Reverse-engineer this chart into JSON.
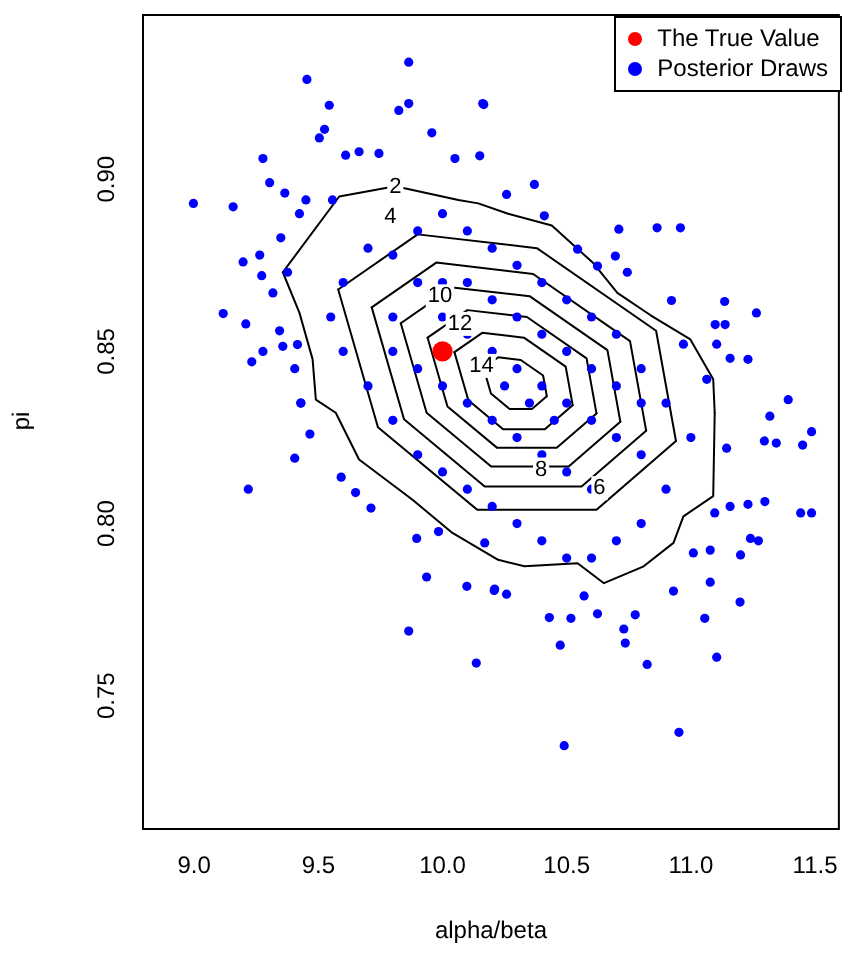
{
  "chart_data": {
    "type": "scatter",
    "xlabel": "alpha/beta",
    "ylabel": "pi",
    "xlim": [
      8.79,
      11.6
    ],
    "ylim": [
      0.7116,
      0.948
    ],
    "xticks": [
      {
        "value": 9,
        "label": "9.0"
      },
      {
        "value": 9.5,
        "label": "9.5"
      },
      {
        "value": 10,
        "label": "10.0"
      },
      {
        "value": 10.5,
        "label": "10.5"
      },
      {
        "value": 11,
        "label": "11.0"
      },
      {
        "value": 11.5,
        "label": "11.5"
      }
    ],
    "yticks": [
      {
        "value": 0.75,
        "label": "0.75"
      },
      {
        "value": 0.8,
        "label": "0.80"
      },
      {
        "value": 0.85,
        "label": "0.85"
      },
      {
        "value": 0.9,
        "label": "0.90"
      }
    ],
    "grid": false,
    "legend": "top right",
    "marker": "circle",
    "series": [
      {
        "name": "The True Value",
        "color": "#ff0000",
        "x": [
          10.0
        ],
        "values": [
          0.85
        ]
      },
      {
        "name": "Posterior Draws",
        "color": "#0000ff",
        "x": [
          9.864,
          9.454,
          9.544,
          9.864,
          9.824,
          9.525,
          9.504,
          9.277,
          9.304,
          8.997,
          9.157,
          9.365,
          9.197,
          9.117,
          9.208,
          9.277,
          9.232,
          9.405,
          9.429,
          9.349,
          9.264,
          9.272,
          9.344,
          9.416,
          9.664,
          9.957,
          10.162,
          10.05,
          9.744,
          9.61,
          9.45,
          9.557,
          9.424,
          9.376,
          9.317,
          9.357,
          9.218,
          9.405,
          9.466,
          9.43,
          9.592,
          9.65,
          9.712,
          9.896,
          9.936,
          9.864,
          10.098,
          10.136,
          10.208,
          9.984,
          10.17,
          10.49,
          10.952,
          10.474,
          10.736,
          10.824,
          11.104,
          11.056,
          11.198,
          10.73,
          10.776,
          10.517,
          10.43,
          10.624,
          10.57,
          10.258,
          10.21,
          10.93,
          11.078,
          11.296,
          11.344,
          11.486,
          11.45,
          11.442,
          11.486,
          11.298,
          11.23,
          11.272,
          11.24,
          11.2,
          11.078,
          11.01,
          11.158,
          11.318,
          11.392,
          11.144,
          11.096,
          10.166,
          10.15,
          10.37,
          10.258,
          10.71,
          10.864,
          10.958,
          10.696,
          10.744,
          10.922,
          11.136,
          11.264,
          11.098,
          11.138,
          11.104,
          11.158,
          11.23,
          11.064,
          10.97,
          10.544,
          10.41,
          10.624,
          9.6,
          9.7,
          9.8,
          9.9,
          10.0,
          10.1,
          10.2,
          10.3,
          10.4,
          10.5,
          10.6,
          10.7,
          10.8,
          10.9,
          11.0,
          10.9,
          10.8,
          10.7,
          10.6,
          10.5,
          10.4,
          10.3,
          10.2,
          10.1,
          10.0,
          9.9,
          9.8,
          9.7,
          9.6,
          9.55,
          9.8,
          9.9,
          10.0,
          10.1,
          10.2,
          10.3,
          10.4,
          10.5,
          10.6,
          10.7,
          10.8,
          10.6,
          10.5,
          10.4,
          10.3,
          10.2,
          10.1,
          10.0,
          9.9,
          9.8,
          10.0,
          10.2,
          10.4,
          10.6,
          10.8,
          10.3,
          10.5,
          10.7,
          10.1,
          10.35,
          10.45,
          10.25
        ],
        "values": [
          0.934,
          0.929,
          0.9215,
          0.922,
          0.92,
          0.9145,
          0.912,
          0.906,
          0.899,
          0.893,
          0.892,
          0.896,
          0.876,
          0.861,
          0.858,
          0.85,
          0.847,
          0.845,
          0.835,
          0.883,
          0.878,
          0.872,
          0.856,
          0.852,
          0.908,
          0.9135,
          0.922,
          0.906,
          0.9075,
          0.907,
          0.894,
          0.894,
          0.89,
          0.873,
          0.867,
          0.8515,
          0.81,
          0.819,
          0.826,
          0.835,
          0.8135,
          0.809,
          0.8045,
          0.7957,
          0.7845,
          0.7688,
          0.7818,
          0.7595,
          0.7806,
          0.7977,
          0.7944,
          0.7355,
          0.7394,
          0.7647,
          0.7653,
          0.7591,
          0.7612,
          0.7725,
          0.7772,
          0.7694,
          0.7735,
          0.7725,
          0.7727,
          0.7738,
          0.779,
          0.7795,
          0.781,
          0.7804,
          0.783,
          0.824,
          0.8234,
          0.8267,
          0.8228,
          0.8031,
          0.8031,
          0.8064,
          0.8056,
          0.795,
          0.7957,
          0.7909,
          0.7923,
          0.7915,
          0.805,
          0.8312,
          0.836,
          0.8219,
          0.8031,
          0.9217,
          0.9068,
          0.8985,
          0.8956,
          0.8855,
          0.8859,
          0.8859,
          0.8777,
          0.873,
          0.8648,
          0.8645,
          0.8612,
          0.8578,
          0.8578,
          0.8521,
          0.848,
          0.8477,
          0.8419,
          0.8521,
          0.8797,
          0.8894,
          0.8748,
          0.87,
          0.88,
          0.878,
          0.885,
          0.89,
          0.885,
          0.88,
          0.875,
          0.87,
          0.865,
          0.86,
          0.855,
          0.845,
          0.835,
          0.825,
          0.81,
          0.8,
          0.795,
          0.79,
          0.79,
          0.795,
          0.8,
          0.805,
          0.81,
          0.815,
          0.82,
          0.83,
          0.84,
          0.85,
          0.86,
          0.86,
          0.87,
          0.86,
          0.855,
          0.85,
          0.845,
          0.84,
          0.835,
          0.83,
          0.825,
          0.82,
          0.81,
          0.815,
          0.82,
          0.825,
          0.83,
          0.835,
          0.84,
          0.845,
          0.85,
          0.87,
          0.865,
          0.855,
          0.845,
          0.835,
          0.86,
          0.85,
          0.84,
          0.87,
          0.835,
          0.83,
          0.84
        ]
      },
      {
        "type": "line",
        "marker": "none",
        "color": "#000000",
        "x": [
          9.357,
          9.584,
          9.81,
          10.064,
          10.144,
          10.264,
          10.44,
          10.608,
          10.704,
          10.838,
          10.998,
          11.09,
          11.096
        ],
        "values": [
          0.873,
          0.895,
          0.898,
          0.894,
          0.893,
          0.89,
          0.8866,
          0.8756,
          0.867,
          0.8605,
          0.8535,
          0.8419,
          0.8322
        ]
      },
      {
        "type": "line",
        "marker": "none",
        "color": "#000000",
        "x": [
          9.357,
          9.424,
          9.477,
          9.49,
          9.57,
          9.664,
          9.878,
          10.04,
          10.224,
          10.33,
          10.544,
          10.65,
          10.81,
          10.93,
          10.97,
          11.09,
          11.096
        ],
        "values": [
          0.873,
          0.8612,
          0.8477,
          0.836,
          0.8322,
          0.8186,
          0.807,
          0.7973,
          0.7895,
          0.7876,
          0.7885,
          0.7827,
          0.7876,
          0.7944,
          0.8021,
          0.808,
          0.8322
        ]
      },
      {
        "type": "line",
        "marker": "none",
        "color": "#000000",
        "x": [
          9.58,
          9.9,
          10.38,
          10.86,
          10.94
        ],
        "values": [
          0.868,
          0.884,
          0.88,
          0.856,
          0.824
        ]
      },
      {
        "type": "line",
        "marker": "none",
        "color": "#000000",
        "x": [
          9.58,
          9.74,
          10.14,
          10.62,
          10.94
        ],
        "values": [
          0.868,
          0.828,
          0.804,
          0.804,
          0.824
        ]
      },
      {
        "type": "line",
        "marker": "none",
        "color": "#000000",
        "x": [
          9.715,
          9.975,
          10.365,
          10.755,
          10.82
        ],
        "values": [
          0.8628,
          0.8758,
          0.8725,
          0.853,
          0.827
        ]
      },
      {
        "type": "line",
        "marker": "none",
        "color": "#000000",
        "x": [
          9.715,
          9.845,
          10.17,
          10.56,
          10.82
        ],
        "values": [
          0.8628,
          0.8303,
          0.8108,
          0.8108,
          0.827
        ]
      },
      {
        "type": "line",
        "marker": "none",
        "color": "#000000",
        "x": [
          9.832,
          10.04,
          10.352,
          10.664,
          10.716
        ],
        "values": [
          0.8582,
          0.8686,
          0.866,
          0.8504,
          0.8296
        ]
      },
      {
        "type": "line",
        "marker": "none",
        "color": "#000000",
        "x": [
          9.832,
          9.936,
          10.196,
          10.508,
          10.716
        ],
        "values": [
          0.8582,
          0.8322,
          0.8166,
          0.8166,
          0.8296
        ]
      },
      {
        "type": "line",
        "marker": "none",
        "color": "#000000",
        "x": [
          9.94,
          10.1,
          10.34,
          10.58,
          10.62
        ],
        "values": [
          0.854,
          0.862,
          0.86,
          0.848,
          0.832
        ]
      },
      {
        "type": "line",
        "marker": "none",
        "color": "#000000",
        "x": [
          9.94,
          10.02,
          10.22,
          10.46,
          10.62
        ],
        "values": [
          0.854,
          0.834,
          0.822,
          0.822,
          0.832
        ]
      },
      {
        "type": "line",
        "marker": "none",
        "color": "#000000",
        "x": [
          10.048,
          10.16,
          10.328,
          10.496,
          10.524
        ],
        "values": [
          0.8498,
          0.8554,
          0.854,
          0.8456,
          0.8344
        ]
      },
      {
        "type": "line",
        "marker": "none",
        "color": "#000000",
        "x": [
          10.048,
          10.104,
          10.244,
          10.412,
          10.524
        ],
        "values": [
          0.8498,
          0.8358,
          0.8274,
          0.8274,
          0.8344
        ]
      },
      {
        "type": "line",
        "marker": "none",
        "color": "#000000",
        "x": [
          10.165,
          10.225,
          10.315,
          10.405,
          10.42
        ],
        "values": [
          0.8453,
          0.8483,
          0.8475,
          0.843,
          0.837
        ]
      },
      {
        "type": "line",
        "marker": "none",
        "color": "#000000",
        "x": [
          10.165,
          10.195,
          10.27,
          10.36,
          10.42
        ],
        "values": [
          0.8453,
          0.8378,
          0.8333,
          0.8333,
          0.837
        ]
      }
    ],
    "annotations": [
      {
        "text": "2",
        "x": 9.81,
        "y": 0.8977
      },
      {
        "text": "4",
        "x": 9.79,
        "y": 0.889
      },
      {
        "text": "10",
        "x": 9.99,
        "y": 0.866
      },
      {
        "text": "12",
        "x": 10.07,
        "y": 0.858
      },
      {
        "text": "14",
        "x": 10.157,
        "y": 0.8458
      },
      {
        "text": "8",
        "x": 10.397,
        "y": 0.8157
      },
      {
        "text": "6",
        "x": 10.632,
        "y": 0.8103
      }
    ]
  }
}
